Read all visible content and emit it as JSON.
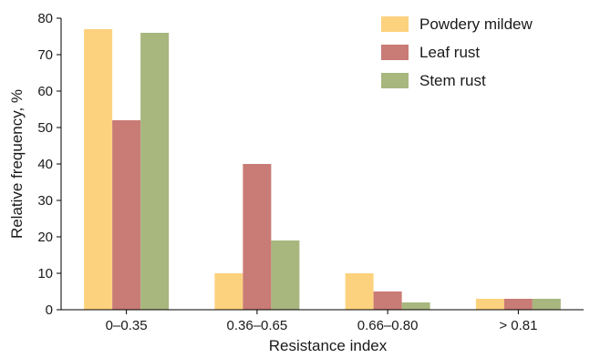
{
  "chart_data": {
    "type": "bar",
    "title": "",
    "xlabel": "Resistance index",
    "ylabel": "Relative frequency, %",
    "ylim": [
      0,
      80
    ],
    "yticks": [
      0,
      10,
      20,
      30,
      40,
      50,
      60,
      70,
      80
    ],
    "categories": [
      "0–0.35",
      "0.36–0.65",
      "0.66–0.80",
      "> 0.81"
    ],
    "series": [
      {
        "name": "Powdery mildew",
        "color": "#FDD27E",
        "values": [
          77,
          10,
          10,
          3
        ]
      },
      {
        "name": "Leaf rust",
        "color": "#C97B76",
        "values": [
          52,
          40,
          5,
          3
        ]
      },
      {
        "name": "Stem rust",
        "color": "#A7B77E",
        "values": [
          76,
          19,
          2,
          3
        ]
      }
    ],
    "legend_position": "top-right",
    "grid": false
  }
}
